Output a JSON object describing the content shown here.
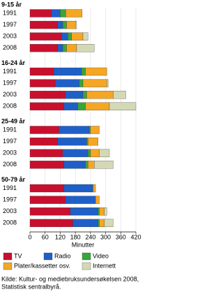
{
  "chart_data": {
    "type": "stacked-barh",
    "groups": [
      "9-15 år",
      "16-24 år",
      "25-49 år",
      "50-79 år"
    ],
    "categories": [
      "1991",
      "1997",
      "2003",
      "2008",
      "1991",
      "1997",
      "2003",
      "2008",
      "1991",
      "1997",
      "2003",
      "2008",
      "1991",
      "1997",
      "2003",
      "2008"
    ],
    "series": [
      {
        "name": "TV",
        "color": "#c8102e",
        "values": [
          85,
          110,
          125,
          110,
          95,
          100,
          140,
          135,
          115,
          110,
          130,
          135,
          135,
          140,
          160,
          170
        ]
      },
      {
        "name": "Radio",
        "color": "#1f5fc8",
        "values": [
          35,
          20,
          25,
          20,
          110,
          95,
          70,
          55,
          120,
          115,
          100,
          85,
          115,
          120,
          110,
          100
        ]
      },
      {
        "name": "Video",
        "color": "#3aa53a",
        "values": [
          22,
          15,
          15,
          15,
          15,
          15,
          15,
          30,
          5,
          5,
          10,
          10,
          0,
          0,
          5,
          5
        ]
      },
      {
        "name": "Plater/kassetter osv.",
        "color": "#f5a623",
        "values": [
          65,
          35,
          45,
          40,
          85,
          95,
          105,
          95,
          35,
          40,
          35,
          25,
          10,
          15,
          20,
          20
        ]
      },
      {
        "name": "Internett",
        "color": "#d4d8b4",
        "values": [
          0,
          5,
          20,
          70,
          0,
          5,
          50,
          105,
          0,
          0,
          40,
          75,
          0,
          0,
          10,
          35
        ]
      }
    ],
    "xlim": [
      0,
      420
    ],
    "xticks": [
      0,
      60,
      120,
      180,
      240,
      300,
      360,
      420
    ],
    "xlabel": "Minutter",
    "grid": true,
    "source": [
      "Kilde: Kultur- og mediebruksundersøkelsen 2008,",
      "Statistisk sentralbyrå."
    ]
  }
}
